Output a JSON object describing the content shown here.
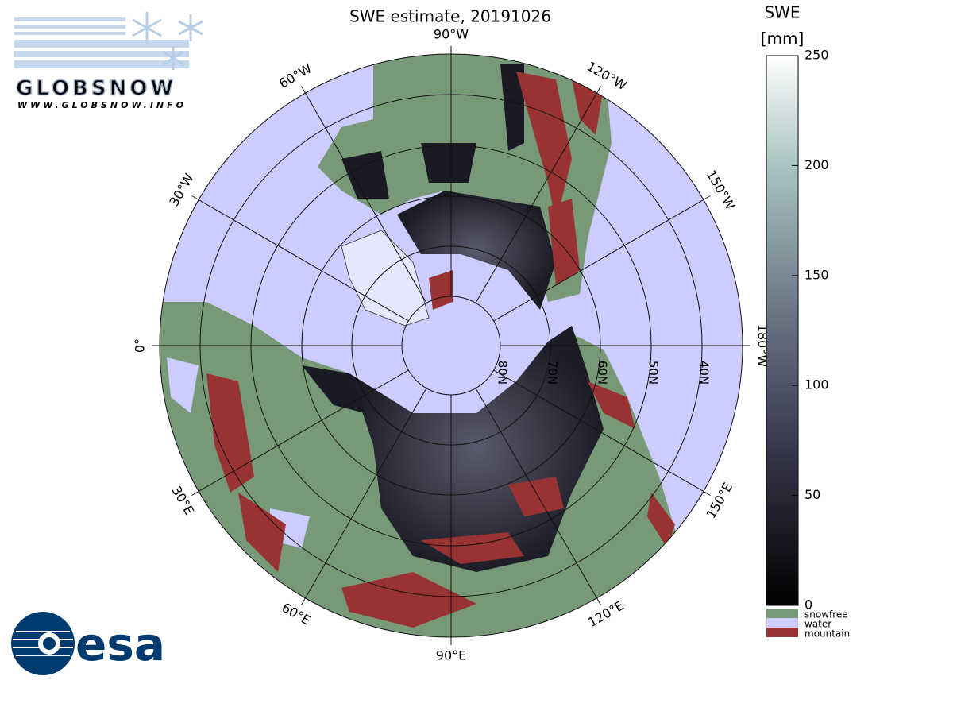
{
  "header": {
    "title": "SWE estimate, 20191026"
  },
  "globsnow_logo": {
    "name": "GLOBSNOW",
    "url": "WWW.GLOBSNOW.INFO"
  },
  "esa_logo": {
    "text": "esa"
  },
  "map": {
    "longitude_labels": [
      "90°W",
      "120°W",
      "150°W",
      "180°W",
      "150°E",
      "120°E",
      "90°E",
      "60°E",
      "30°E",
      "0°",
      "30°W",
      "60°W"
    ],
    "latitude_labels": [
      "80N",
      "70N",
      "60N",
      "50N",
      "40N"
    ]
  },
  "colorbar": {
    "title": "SWE",
    "unit": "[mm]",
    "range": [
      0,
      250
    ],
    "ticks": [
      0,
      50,
      100,
      150,
      200,
      250
    ],
    "categories": [
      "snowfree",
      "water",
      "mountain"
    ]
  }
}
